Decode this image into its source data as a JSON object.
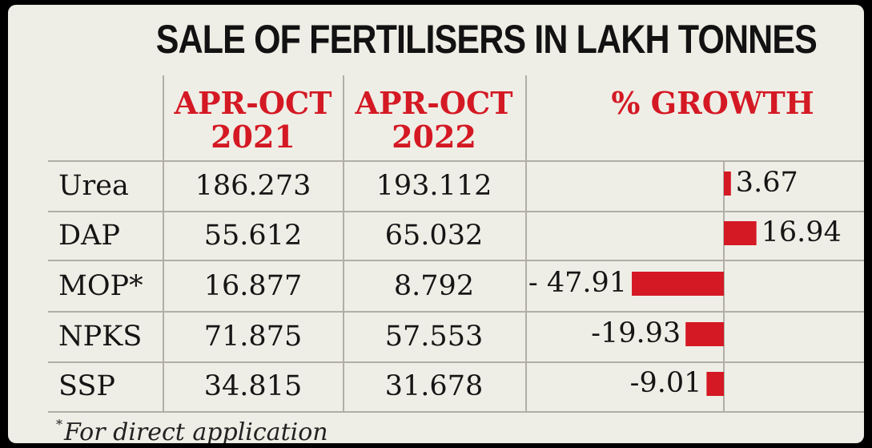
{
  "title": "SALE OF FERTILISERS IN LAKH TONNES",
  "headers": {
    "col1": [
      "APR-OCT",
      "2021"
    ],
    "col2": [
      "APR-OCT",
      "2022"
    ],
    "col3": "% GROWTH"
  },
  "footnote": {
    "mark": "*",
    "text": "For direct application"
  },
  "colors": {
    "accent": "#d41924",
    "background": "#efeee6",
    "text": "#151515",
    "grid": "#b0aea6"
  },
  "chart_data": {
    "type": "table",
    "title": "SALE OF FERTILISERS IN LAKH TONNES",
    "columns": [
      "",
      "APR-OCT 2021",
      "APR-OCT 2022",
      "% GROWTH"
    ],
    "rows": [
      {
        "name": "Urea",
        "apr_oct_2021": "186.273",
        "apr_oct_2022": "193.112",
        "growth": 3.67,
        "growth_label": "3.67"
      },
      {
        "name": "DAP",
        "apr_oct_2021": "55.612",
        "apr_oct_2022": "65.032",
        "growth": 16.94,
        "growth_label": "16.94"
      },
      {
        "name": "MOP*",
        "apr_oct_2021": "16.877",
        "apr_oct_2022": "8.792",
        "growth": -47.91,
        "growth_label": "- 47.91"
      },
      {
        "name": "NPKS",
        "apr_oct_2021": "71.875",
        "apr_oct_2022": "57.553",
        "growth": -19.93,
        "growth_label": "-19.93"
      },
      {
        "name": "SSP",
        "apr_oct_2021": "34.815",
        "apr_oct_2022": "31.678",
        "growth": -9.01,
        "growth_label": "-9.01"
      }
    ]
  }
}
